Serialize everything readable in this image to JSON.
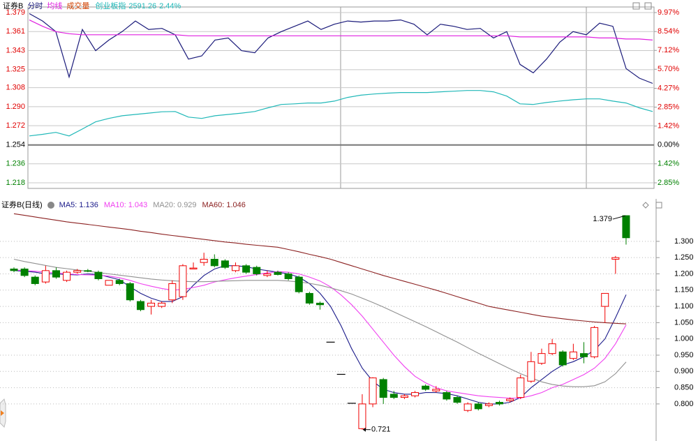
{
  "chart_data": [
    {
      "type": "line",
      "title": "证券B",
      "volume_tab": "成交量",
      "index_value": 2591.26,
      "index_change": {
        "value": 2.44,
        "label": "2.44%"
      },
      "ylim": [
        1.218,
        1.379
      ],
      "yticks": [
        1.379,
        1.361,
        1.343,
        1.325,
        1.308,
        {
          "value": 1.29,
          "label": "1.290"
        },
        1.272,
        1.254,
        1.236,
        1.218
      ],
      "y2lim": [
        -2.85,
        9.97
      ],
      "y2ticks": [
        {
          "value": 9.97,
          "label": "9.97%"
        },
        {
          "value": 8.54,
          "label": "8.54%"
        },
        {
          "value": 7.12,
          "label": "7.12%"
        },
        {
          "value": 5.7,
          "label": "5.70%"
        },
        {
          "value": 4.27,
          "label": "4.27%"
        },
        {
          "value": 2.85,
          "label": "2.85%"
        },
        {
          "value": 1.42,
          "label": "1.42%"
        },
        {
          "value": 0,
          "label": "0.00%"
        },
        {
          "value": -1.42,
          "label": "1.42%"
        },
        {
          "value": -2.85,
          "label": "2.85%"
        }
      ],
      "grid": true,
      "up_color": "#e00000",
      "down_color": "#008000",
      "flat_color": "#000000",
      "series": [
        {
          "name": "分时",
          "color": "#1a1a7a",
          "values": [
            1.378,
            1.371,
            1.361,
            1.318,
            1.363,
            1.343,
            1.353,
            1.361,
            1.371,
            1.363,
            1.364,
            1.358,
            1.335,
            1.338,
            1.353,
            1.355,
            1.343,
            1.341,
            1.355,
            1.361,
            1.366,
            1.371,
            1.363,
            1.368,
            1.371,
            1.37,
            1.371,
            1.371,
            1.372,
            1.368,
            1.358,
            1.368,
            1.366,
            1.363,
            1.364,
            1.355,
            1.361,
            1.33,
            1.322,
            1.335,
            1.351,
            1.361,
            1.358,
            1.369,
            1.366,
            1.326,
            1.317,
            1.312
          ]
        },
        {
          "name": "均线",
          "color": "#e020e0",
          "values": [
            1.372,
            1.366,
            1.361,
            1.359,
            1.358,
            1.358,
            1.358,
            1.358,
            1.358,
            1.358,
            1.358,
            1.358,
            1.357,
            1.357,
            1.357,
            1.357,
            1.357,
            1.357,
            1.357,
            1.357,
            1.357,
            1.357,
            1.357,
            1.357,
            1.357,
            1.357,
            1.357,
            1.357,
            1.357,
            1.357,
            1.357,
            1.357,
            1.357,
            1.357,
            1.357,
            1.357,
            1.357,
            1.356,
            1.356,
            1.356,
            1.356,
            1.356,
            1.356,
            1.355,
            1.355,
            1.354,
            1.354,
            1.353
          ]
        },
        {
          "name": "创业板指",
          "color": "#20b8b8",
          "axis": "y2",
          "values": [
            0.68,
            0.8,
            0.95,
            0.68,
            1.2,
            1.74,
            2.0,
            2.2,
            2.3,
            2.4,
            2.5,
            2.52,
            2.1,
            2.0,
            2.2,
            2.3,
            2.4,
            2.52,
            2.8,
            3.05,
            3.1,
            3.16,
            3.16,
            3.3,
            3.58,
            3.75,
            3.84,
            3.9,
            3.95,
            3.95,
            3.95,
            4.0,
            4.05,
            4.1,
            4.1,
            4.0,
            3.68,
            3.1,
            3.05,
            3.2,
            3.31,
            3.4,
            3.47,
            3.47,
            3.3,
            3.16,
            2.8,
            2.52
          ]
        }
      ]
    },
    {
      "type": "candlestick",
      "title": "证券B(日线)",
      "ylim": [
        0.686,
        1.392
      ],
      "yticks": [
        {
          "value": 1.3,
          "label": "1.300"
        },
        {
          "value": 1.25,
          "label": "1.250"
        },
        {
          "value": 1.2,
          "label": "1.200"
        },
        {
          "value": 1.15,
          "label": "1.150"
        },
        {
          "value": 1.1,
          "label": "1.100"
        },
        {
          "value": 1.05,
          "label": "1.050"
        },
        {
          "value": 1,
          "label": "1.000"
        },
        {
          "value": 0.95,
          "label": "0.950"
        },
        {
          "value": 0.9,
          "label": "0.900"
        },
        {
          "value": 0.85,
          "label": "0.850"
        },
        {
          "value": 0.8,
          "label": "0.800"
        }
      ],
      "grid": true,
      "up_color": "#f00000",
      "down_color": "#008000",
      "flat_color": "#000000",
      "open": [
        1.215,
        1.215,
        1.19,
        1.175,
        1.21,
        1.18,
        1.205,
        1.21,
        1.205,
        1.165,
        1.18,
        1.17,
        1.115,
        1.1,
        1.1,
        1.12,
        1.13,
        1.215,
        1.235,
        1.245,
        1.24,
        1.21,
        1.225,
        1.22,
        1.195,
        1.205,
        1.2,
        1.19,
        1.14,
        1.11,
        0.99,
        0.891,
        0.802,
        0.724,
        0.8,
        0.875,
        0.83,
        0.82,
        0.825,
        0.855,
        0.84,
        0.835,
        0.82,
        0.78,
        0.8,
        0.795,
        0.805,
        0.81,
        0.82,
        0.87,
        0.925,
        0.955,
        0.96,
        0.94,
        0.955,
        0.945,
        1.1,
        1.245,
        1.379
      ],
      "high": [
        1.22,
        1.22,
        1.195,
        1.225,
        1.22,
        1.21,
        1.215,
        1.215,
        1.21,
        1.18,
        1.185,
        1.175,
        1.12,
        1.12,
        1.115,
        1.18,
        1.23,
        1.235,
        1.265,
        1.26,
        1.245,
        1.235,
        1.23,
        1.225,
        1.21,
        1.21,
        1.205,
        1.195,
        1.145,
        1.115,
        0.99,
        0.891,
        0.802,
        0.83,
        0.882,
        0.88,
        0.84,
        0.83,
        0.84,
        0.86,
        0.855,
        0.84,
        0.825,
        0.805,
        0.805,
        0.805,
        0.81,
        0.82,
        0.89,
        0.96,
        0.97,
        1.0,
        0.965,
        0.985,
        0.99,
        1.04,
        1.14,
        1.255,
        1.379
      ],
      "low": [
        1.205,
        1.19,
        1.165,
        1.17,
        1.185,
        1.175,
        1.2,
        1.205,
        1.18,
        1.165,
        1.165,
        1.115,
        1.085,
        1.075,
        1.095,
        1.11,
        1.12,
        1.215,
        1.225,
        1.22,
        1.215,
        1.205,
        1.2,
        1.195,
        1.19,
        1.195,
        1.18,
        1.14,
        1.105,
        1.09,
        0.99,
        0.891,
        0.802,
        0.721,
        0.79,
        0.8,
        0.815,
        0.815,
        0.82,
        0.84,
        0.835,
        0.81,
        0.8,
        0.775,
        0.78,
        0.79,
        0.795,
        0.805,
        0.815,
        0.865,
        0.92,
        0.95,
        0.915,
        0.935,
        0.925,
        0.94,
        1.05,
        1.2,
        1.29
      ],
      "close": [
        1.21,
        1.195,
        1.17,
        1.21,
        1.19,
        1.205,
        1.21,
        1.208,
        1.185,
        1.18,
        1.17,
        1.12,
        1.09,
        1.11,
        1.11,
        1.17,
        1.225,
        1.218,
        1.245,
        1.225,
        1.22,
        1.225,
        1.205,
        1.2,
        1.2,
        1.198,
        1.185,
        1.145,
        1.11,
        1.105,
        0.99,
        0.891,
        0.802,
        0.8,
        0.88,
        0.82,
        0.82,
        0.825,
        0.835,
        0.845,
        0.845,
        0.815,
        0.805,
        0.8,
        0.785,
        0.8,
        0.8,
        0.815,
        0.88,
        0.93,
        0.955,
        0.985,
        0.92,
        0.96,
        0.945,
        1.035,
        1.14,
        1.25,
        1.311
      ],
      "annotations": [
        1.379,
        0.721
      ],
      "series": [
        {
          "name": "MA5:",
          "value": 1.136,
          "color": "#1a1a8a",
          "values": [
            1.21,
            1.208,
            1.205,
            1.2,
            1.2,
            1.198,
            1.197,
            1.2,
            1.198,
            1.19,
            1.182,
            1.16,
            1.14,
            1.125,
            1.115,
            1.115,
            1.13,
            1.165,
            1.195,
            1.215,
            1.225,
            1.225,
            1.222,
            1.215,
            1.21,
            1.205,
            1.2,
            1.19,
            1.17,
            1.14,
            1.1,
            1.04,
            0.97,
            0.91,
            0.87,
            0.845,
            0.835,
            0.83,
            0.83,
            0.835,
            0.835,
            0.832,
            0.825,
            0.815,
            0.805,
            0.8,
            0.8,
            0.805,
            0.82,
            0.85,
            0.875,
            0.9,
            0.92,
            0.93,
            0.945,
            0.965,
            1.0,
            1.065,
            1.136
          ]
        },
        {
          "name": "MA10:",
          "value": 1.043,
          "color": "#f040f0",
          "values": [
            1.212,
            1.21,
            1.208,
            1.205,
            1.203,
            1.2,
            1.198,
            1.197,
            1.196,
            1.193,
            1.188,
            1.18,
            1.17,
            1.162,
            1.155,
            1.15,
            1.152,
            1.158,
            1.165,
            1.175,
            1.182,
            1.188,
            1.193,
            1.198,
            1.203,
            1.207,
            1.205,
            1.2,
            1.19,
            1.178,
            1.16,
            1.135,
            1.105,
            1.07,
            1.03,
            0.99,
            0.95,
            0.915,
            0.885,
            0.865,
            0.85,
            0.84,
            0.835,
            0.83,
            0.825,
            0.822,
            0.82,
            0.818,
            0.818,
            0.825,
            0.835,
            0.85,
            0.86,
            0.875,
            0.89,
            0.91,
            0.94,
            0.985,
            1.043
          ]
        },
        {
          "name": "MA20:",
          "value": 0.929,
          "color": "#909090",
          "values": [
            1.245,
            1.238,
            1.232,
            1.226,
            1.22,
            1.216,
            1.212,
            1.208,
            1.204,
            1.2,
            1.196,
            1.192,
            1.188,
            1.184,
            1.181,
            1.179,
            1.177,
            1.176,
            1.176,
            1.177,
            1.178,
            1.179,
            1.18,
            1.18,
            1.18,
            1.18,
            1.178,
            1.175,
            1.171,
            1.165,
            1.157,
            1.148,
            1.138,
            1.125,
            1.112,
            1.098,
            1.083,
            1.068,
            1.053,
            1.038,
            1.022,
            1.006,
            0.99,
            0.973,
            0.956,
            0.94,
            0.924,
            0.908,
            0.893,
            0.88,
            0.868,
            0.86,
            0.855,
            0.853,
            0.853,
            0.856,
            0.868,
            0.893,
            0.929
          ]
        },
        {
          "name": "MA60:",
          "value": 1.046,
          "color": "#8b2020",
          "values": [
            1.385,
            1.38,
            1.375,
            1.37,
            1.365,
            1.36,
            1.356,
            1.352,
            1.348,
            1.344,
            1.34,
            1.336,
            1.331,
            1.327,
            1.322,
            1.318,
            1.314,
            1.31,
            1.306,
            1.302,
            1.298,
            1.295,
            1.291,
            1.288,
            1.285,
            1.282,
            1.275,
            1.268,
            1.26,
            1.253,
            1.245,
            1.235,
            1.225,
            1.215,
            1.205,
            1.195,
            1.186,
            1.177,
            1.168,
            1.159,
            1.15,
            1.14,
            1.13,
            1.12,
            1.11,
            1.1,
            1.094,
            1.088,
            1.082,
            1.076,
            1.07,
            1.066,
            1.062,
            1.058,
            1.055,
            1.052,
            1.05,
            1.048,
            1.046
          ]
        }
      ]
    }
  ]
}
